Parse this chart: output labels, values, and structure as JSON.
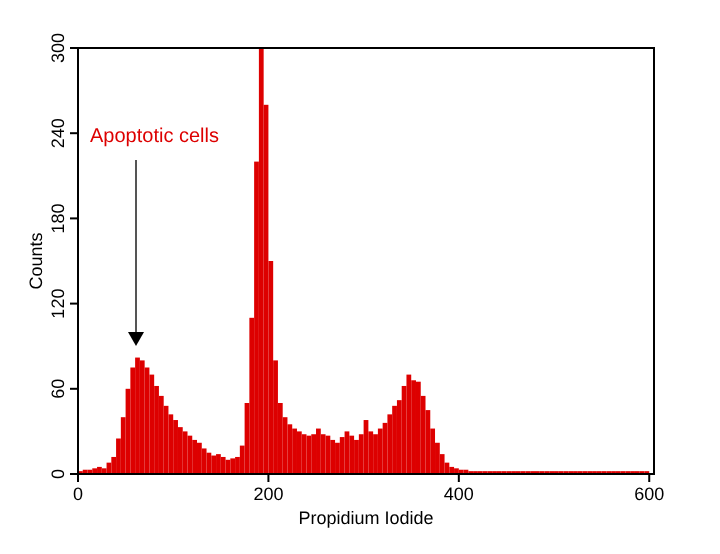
{
  "chart_data": {
    "type": "histogram",
    "xlabel": "Propidium Iodide",
    "ylabel": "Counts",
    "color": "#dd0000",
    "bins": [
      0,
      5,
      10,
      15,
      20,
      25,
      30,
      35,
      40,
      45,
      50,
      55,
      60,
      65,
      70,
      75,
      80,
      85,
      90,
      95,
      100,
      105,
      110,
      115,
      120,
      125,
      130,
      135,
      140,
      145,
      150,
      155,
      160,
      165,
      170,
      175,
      180,
      185,
      190,
      195,
      200,
      205,
      210,
      215,
      220,
      225,
      230,
      235,
      240,
      245,
      250,
      255,
      260,
      265,
      270,
      275,
      280,
      285,
      290,
      295,
      300,
      305,
      310,
      315,
      320,
      325,
      330,
      335,
      340,
      345,
      350,
      355,
      360,
      365,
      370,
      375,
      380,
      385,
      390,
      395,
      400,
      405,
      410,
      415,
      420,
      425,
      430,
      435,
      440,
      445,
      450,
      455,
      460,
      465,
      470,
      475,
      480,
      485,
      490,
      495,
      500,
      505,
      510,
      515,
      520,
      525,
      530,
      535,
      540,
      545,
      550,
      555,
      560,
      565,
      570,
      575,
      580,
      585,
      590,
      595,
      600
    ],
    "values": [
      2,
      3,
      3,
      4,
      5,
      4,
      8,
      12,
      25,
      40,
      60,
      75,
      82,
      80,
      75,
      70,
      62,
      55,
      48,
      42,
      38,
      33,
      30,
      27,
      24,
      22,
      18,
      15,
      13,
      14,
      12,
      10,
      11,
      12,
      20,
      50,
      110,
      220,
      300,
      260,
      150,
      80,
      50,
      40,
      35,
      32,
      30,
      28,
      27,
      28,
      32,
      28,
      27,
      24,
      22,
      26,
      30,
      27,
      24,
      28,
      38,
      30,
      28,
      32,
      36,
      42,
      48,
      52,
      62,
      70,
      66,
      65,
      55,
      45,
      32,
      22,
      14,
      8,
      5,
      4,
      3,
      3,
      2,
      2,
      2,
      2,
      2,
      2,
      2,
      2,
      2,
      2,
      2,
      2,
      2,
      2,
      2,
      2,
      2,
      2,
      2,
      2,
      2,
      2,
      2,
      2,
      2,
      2,
      2,
      2,
      2,
      2,
      2,
      2,
      2,
      2,
      2,
      2,
      2,
      2
    ],
    "xlim": [
      0,
      605
    ],
    "xticks": [
      0,
      200,
      400,
      600
    ],
    "ylim": [
      0,
      300
    ],
    "yticks": [
      0,
      60,
      120,
      180,
      240,
      300
    ],
    "annotations": [
      "Apoptotic cells"
    ]
  }
}
